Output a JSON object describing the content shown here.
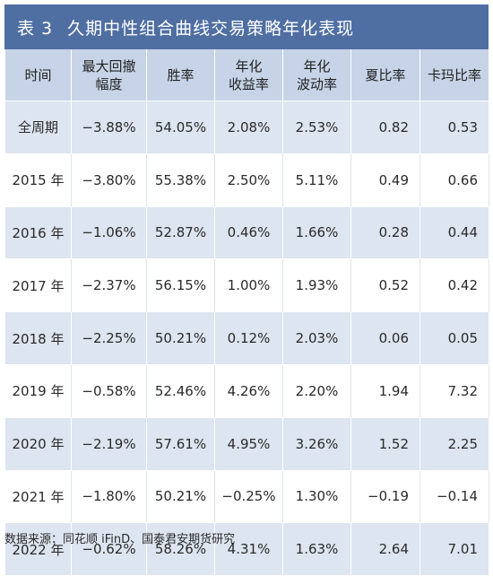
{
  "title": {
    "number": "表 3",
    "text": "久期中性组合曲线交易策略年化表现"
  },
  "table": {
    "headers": [
      "时间",
      "最大回撤\n幅度",
      "胜率",
      "年化\n收益率",
      "年化\n波动率",
      "夏比率",
      "卡玛比率"
    ],
    "rows": [
      [
        "全周期",
        "−3.88%",
        "54.05%",
        "2.08%",
        "2.53%",
        "0.82",
        "0.53"
      ],
      [
        "2015 年",
        "−3.80%",
        "55.38%",
        "2.50%",
        "5.11%",
        "0.49",
        "0.66"
      ],
      [
        "2016 年",
        "−1.06%",
        "52.87%",
        "0.46%",
        "1.66%",
        "0.28",
        "0.44"
      ],
      [
        "2017 年",
        "−2.37%",
        "56.15%",
        "1.00%",
        "1.93%",
        "0.52",
        "0.42"
      ],
      [
        "2018 年",
        "−2.25%",
        "50.21%",
        "0.12%",
        "2.03%",
        "0.06",
        "0.05"
      ],
      [
        "2019 年",
        "−0.58%",
        "52.46%",
        "4.26%",
        "2.20%",
        "1.94",
        "7.32"
      ],
      [
        "2020 年",
        "−2.19%",
        "57.61%",
        "4.95%",
        "3.26%",
        "1.52",
        "2.25"
      ],
      [
        "2021 年",
        "−1.80%",
        "50.21%",
        "−0.25%",
        "1.30%",
        "−0.19",
        "−0.14"
      ],
      [
        "2022 年",
        "−0.62%",
        "58.26%",
        "4.31%",
        "1.63%",
        "2.64",
        "7.01"
      ]
    ]
  },
  "source": "数据来源：同花顺 iFinD、国泰君安期货研究",
  "colors": {
    "title_bg": "#4f6fa3",
    "header_bg": "#c7d4e7",
    "odd_row_bg": "#dde5f0",
    "even_row_bg": "#ffffff"
  }
}
